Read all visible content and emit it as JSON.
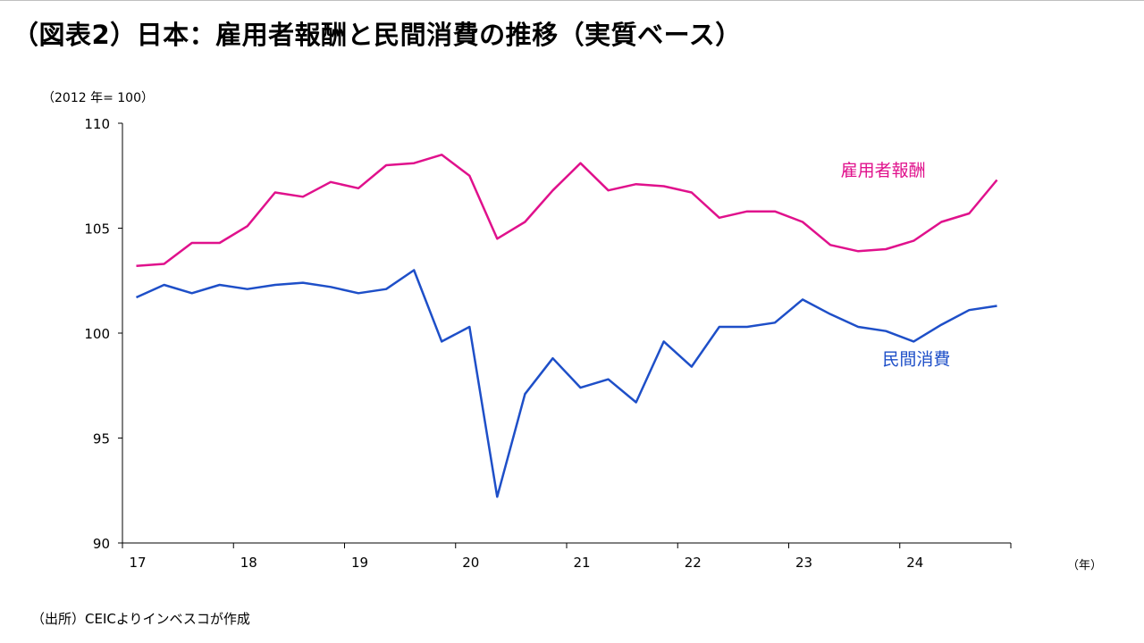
{
  "title": "（図表2）日本：雇用者報酬と民間消費の推移（実質ベース）",
  "source": "（出所）CEICよりインベスコが作成",
  "colors": {
    "compensation": "#E0118C",
    "consumption": "#1E4FC8",
    "axis": "#000000"
  },
  "chart_data": {
    "type": "line",
    "title": "（図表2）日本：雇用者報酬と民間消費の推移（実質ベース）",
    "ylabel": "（2012 年= 100）",
    "xlabel": "（年）",
    "ylim": [
      90,
      110
    ],
    "yticks": [
      90,
      95,
      100,
      105,
      110
    ],
    "xlim": [
      2017.0,
      2025.0
    ],
    "xtick_labels": [
      "17",
      "18",
      "19",
      "20",
      "21",
      "22",
      "23",
      "24"
    ],
    "grid": false,
    "x": [
      2017.0,
      2017.25,
      2017.5,
      2017.75,
      2018.0,
      2018.25,
      2018.5,
      2018.75,
      2019.0,
      2019.25,
      2019.5,
      2019.75,
      2020.0,
      2020.25,
      2020.5,
      2020.75,
      2021.0,
      2021.25,
      2021.5,
      2021.75,
      2022.0,
      2022.25,
      2022.5,
      2022.75,
      2023.0,
      2023.25,
      2023.5,
      2023.75,
      2024.0,
      2024.25,
      2024.5,
      2024.75
    ],
    "series": [
      {
        "name": "雇用者報酬",
        "color": "#E0118C",
        "values": [
          103.2,
          103.3,
          104.3,
          104.3,
          105.1,
          106.7,
          106.5,
          107.2,
          106.9,
          108.0,
          108.1,
          108.5,
          107.5,
          104.5,
          105.3,
          106.8,
          108.1,
          106.8,
          107.1,
          107.0,
          106.7,
          105.5,
          105.8,
          105.8,
          105.3,
          104.2,
          103.9,
          104.0,
          104.4,
          105.3,
          105.7,
          107.3
        ]
      },
      {
        "name": "民間消費",
        "color": "#1E4FC8",
        "values": [
          101.7,
          102.3,
          101.9,
          102.3,
          102.1,
          102.3,
          102.4,
          102.2,
          101.9,
          102.1,
          103.0,
          99.6,
          100.3,
          92.2,
          97.1,
          98.8,
          97.4,
          97.8,
          96.7,
          99.6,
          98.4,
          100.3,
          100.3,
          100.5,
          101.6,
          100.9,
          100.3,
          100.1,
          99.6,
          100.4,
          101.1,
          101.3
        ]
      }
    ]
  }
}
